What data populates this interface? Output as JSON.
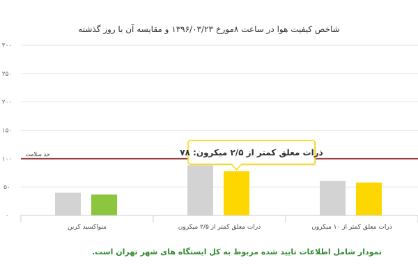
{
  "chart_data": {
    "type": "bar",
    "title": "شاخص کیفیت هوا در ساعت ۸مورخ ۱۳۹۶/۰۳/۲۳ و مقایسه آن با روز گذشته",
    "categories": [
      "منواکسید کربن",
      "ذرات معلق کمتر از ۲/۵ میکرون",
      "ذرات معلق کمتر از ۱۰ میکرون"
    ],
    "series": [
      {
        "values": [
          40,
          88,
          61
        ],
        "color": "#d3d3d3"
      },
      {
        "values": [
          37,
          78,
          58
        ],
        "colors": [
          "#8cc63f",
          "#ffd700",
          "#ffd700"
        ]
      }
    ],
    "ylim": [
      0,
      300
    ],
    "yticks": [
      0,
      50,
      100,
      150,
      200,
      250,
      300
    ],
    "ytick_labels": [
      "۰",
      "۵۰",
      "۱۰۰",
      "۱۵۰",
      "۲۰۰",
      "۲۵۰",
      "۳۰۰"
    ],
    "grid": true,
    "reference_line": {
      "value": 100,
      "label": "حد سلامت",
      "color": "#8b1a1a"
    },
    "tooltip": {
      "text": "ذرات معلق کمتر از ۲/۵ میکرون: ۷۸",
      "category_index": 1,
      "series_index": 1
    }
  },
  "footnote": "نمودار شامل اطلاعات تایید شده مربوط به کل ایستگاه های شهر تهران است."
}
